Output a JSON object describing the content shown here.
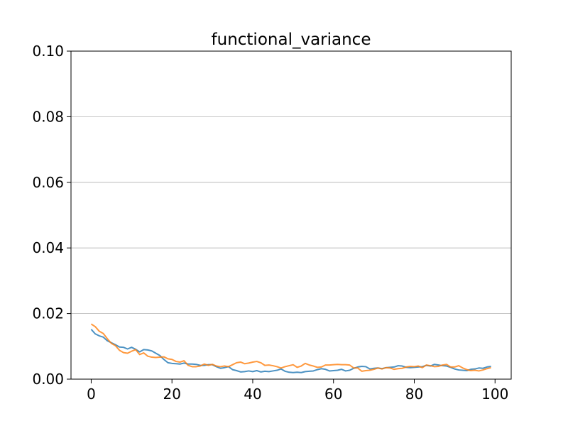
{
  "chart_data": {
    "type": "line",
    "title": "functional_variance",
    "xlabel": "",
    "ylabel": "",
    "xlim": [
      -5,
      104
    ],
    "ylim": [
      0.0,
      0.1
    ],
    "x_ticks": [
      0,
      20,
      40,
      60,
      80,
      100
    ],
    "x_tick_labels": [
      "0",
      "20",
      "40",
      "60",
      "80",
      "100"
    ],
    "y_ticks": [
      0.0,
      0.02,
      0.04,
      0.06,
      0.08,
      0.1
    ],
    "y_tick_labels": [
      "0.00",
      "0.02",
      "0.04",
      "0.06",
      "0.08",
      "0.10"
    ],
    "grid": "horizontal",
    "legend": "none",
    "series": [
      {
        "color": "#1f77b4",
        "x": [
          0,
          1,
          2,
          3,
          4,
          5,
          6,
          7,
          8,
          9,
          10,
          11,
          12,
          13,
          14,
          15,
          16,
          17,
          18,
          19,
          20,
          21,
          22,
          23,
          24,
          25,
          26,
          27,
          28,
          29,
          30,
          31,
          32,
          33,
          34,
          35,
          36,
          37,
          38,
          39,
          40,
          41,
          42,
          43,
          44,
          45,
          46,
          47,
          48,
          49,
          50,
          51,
          52,
          53,
          54,
          55,
          56,
          57,
          58,
          59,
          60,
          61,
          62,
          63,
          64,
          65,
          66,
          67,
          68,
          69,
          70,
          71,
          72,
          73,
          74,
          75,
          76,
          77,
          78,
          79,
          80,
          81,
          82,
          83,
          84,
          85,
          86,
          87,
          88,
          89,
          90,
          91,
          92,
          93,
          94,
          95,
          96,
          97,
          98,
          99
        ],
        "y": [
          0.0152,
          0.0138,
          0.0132,
          0.0128,
          0.0117,
          0.0111,
          0.0105,
          0.0098,
          0.0097,
          0.0092,
          0.0097,
          0.0091,
          0.0083,
          0.009,
          0.0089,
          0.0086,
          0.0079,
          0.0072,
          0.006,
          0.005,
          0.0048,
          0.0047,
          0.0046,
          0.0049,
          0.0046,
          0.0046,
          0.0045,
          0.0042,
          0.0042,
          0.0044,
          0.0044,
          0.0038,
          0.0033,
          0.0035,
          0.0038,
          0.0029,
          0.0026,
          0.0022,
          0.0023,
          0.0025,
          0.0023,
          0.0026,
          0.0022,
          0.0024,
          0.0023,
          0.0025,
          0.0027,
          0.0031,
          0.0024,
          0.0021,
          0.002,
          0.0021,
          0.002,
          0.0023,
          0.0024,
          0.0025,
          0.0029,
          0.0032,
          0.003,
          0.0025,
          0.0026,
          0.0027,
          0.003,
          0.0025,
          0.0027,
          0.0033,
          0.0037,
          0.0039,
          0.0038,
          0.0031,
          0.0033,
          0.0034,
          0.0032,
          0.0035,
          0.0036,
          0.0037,
          0.0041,
          0.004,
          0.0036,
          0.0035,
          0.0036,
          0.0037,
          0.0038,
          0.0042,
          0.004,
          0.0045,
          0.0043,
          0.0041,
          0.004,
          0.0036,
          0.0031,
          0.0028,
          0.0027,
          0.0026,
          0.003,
          0.0031,
          0.0034,
          0.0033,
          0.0037,
          0.0039
        ]
      },
      {
        "color": "#ff7f0e",
        "x": [
          0,
          1,
          2,
          3,
          4,
          5,
          6,
          7,
          8,
          9,
          10,
          11,
          12,
          13,
          14,
          15,
          16,
          17,
          18,
          19,
          20,
          21,
          22,
          23,
          24,
          25,
          26,
          27,
          28,
          29,
          30,
          31,
          32,
          33,
          34,
          35,
          36,
          37,
          38,
          39,
          40,
          41,
          42,
          43,
          44,
          45,
          46,
          47,
          48,
          49,
          50,
          51,
          52,
          53,
          54,
          55,
          56,
          57,
          58,
          59,
          60,
          61,
          62,
          63,
          64,
          65,
          66,
          67,
          68,
          69,
          70,
          71,
          72,
          73,
          74,
          75,
          76,
          77,
          78,
          79,
          80,
          81,
          82,
          83,
          84,
          85,
          86,
          87,
          88,
          89,
          90,
          91,
          92,
          93,
          94,
          95,
          96,
          97,
          98,
          99
        ],
        "y": [
          0.0168,
          0.016,
          0.0146,
          0.0139,
          0.0123,
          0.0109,
          0.0102,
          0.0088,
          0.0081,
          0.0079,
          0.0085,
          0.009,
          0.0075,
          0.008,
          0.007,
          0.0067,
          0.0066,
          0.0067,
          0.0068,
          0.0062,
          0.006,
          0.0054,
          0.0052,
          0.0056,
          0.0042,
          0.0038,
          0.0038,
          0.004,
          0.0046,
          0.0042,
          0.0045,
          0.004,
          0.0038,
          0.004,
          0.0038,
          0.0044,
          0.005,
          0.0052,
          0.0047,
          0.0049,
          0.0052,
          0.0054,
          0.005,
          0.0042,
          0.0043,
          0.0041,
          0.0038,
          0.0034,
          0.0038,
          0.0041,
          0.0044,
          0.0036,
          0.004,
          0.0048,
          0.0043,
          0.004,
          0.0036,
          0.0037,
          0.0043,
          0.0043,
          0.0044,
          0.0045,
          0.0044,
          0.0044,
          0.0043,
          0.0034,
          0.0034,
          0.0024,
          0.0026,
          0.0027,
          0.003,
          0.0034,
          0.0031,
          0.0035,
          0.0034,
          0.003,
          0.0032,
          0.0033,
          0.0037,
          0.0039,
          0.0038,
          0.004,
          0.0035,
          0.0043,
          0.0041,
          0.0038,
          0.0039,
          0.0043,
          0.0045,
          0.0037,
          0.0037,
          0.0041,
          0.0034,
          0.0029,
          0.0026,
          0.0027,
          0.0025,
          0.0028,
          0.0032,
          0.0035
        ]
      }
    ]
  }
}
